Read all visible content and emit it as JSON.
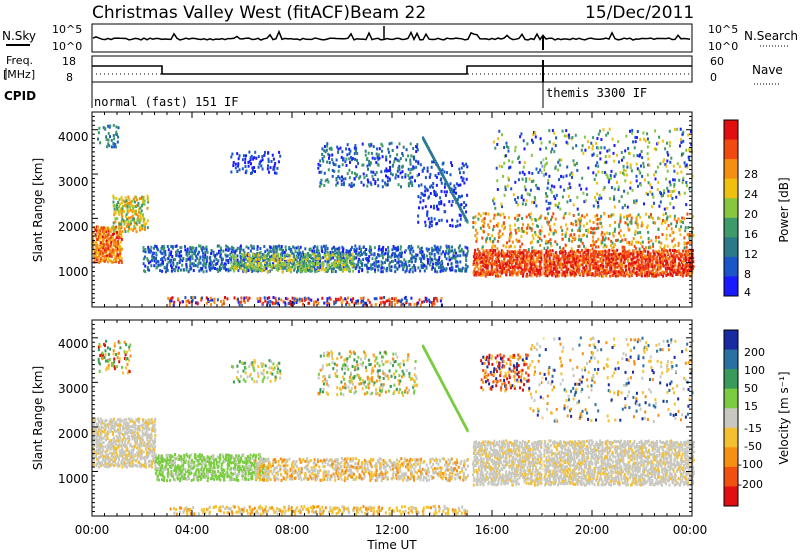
{
  "header": {
    "title": "Christmas Valley West (fitACF)",
    "beam": "Beam 22",
    "date": "15/Dec/2011"
  },
  "status_panels": {
    "nsky_label": "N.Sky",
    "nsearch_label": "N.Search",
    "freq_label_1": "Freq.",
    "freq_label_2": "[MHz]",
    "nave_label": "Nave",
    "cpid_label": "CPID",
    "nsky_ticks": [
      "10^5",
      "10^0"
    ],
    "nsearch_ticks": [
      "10^5",
      "10^0"
    ],
    "freq_ticks": [
      "18",
      "8"
    ],
    "nave_ticks": [
      "60",
      "0"
    ],
    "cpid_1": "normal (fast) 151 IF",
    "cpid_2": "themis 3300 IF",
    "freq_segments_mhz": [
      [
        0,
        2.8,
        14.5
      ],
      [
        2.8,
        15.0,
        10.5
      ],
      [
        15.0,
        24.0,
        14.5
      ]
    ]
  },
  "chart_data": [
    {
      "type": "heatmap",
      "name": "power",
      "ylabel": "Slant Range [km]",
      "y_ticks": [
        "1000",
        "2000",
        "3000",
        "4000"
      ],
      "ylim": [
        180,
        4550
      ],
      "xlim": [
        0,
        24
      ],
      "colorbar_label": "Power [dB]",
      "colorbar_ticks": [
        "4",
        "8",
        "12",
        "16",
        "20",
        "24",
        "28"
      ],
      "colors": [
        "#1a1aff",
        "#1a56c8",
        "#2a7a8a",
        "#3f9a6a",
        "#88c640",
        "#f0c010",
        "#f58f10",
        "#f04a10",
        "#e01010"
      ]
    },
    {
      "type": "heatmap",
      "name": "velocity",
      "ylabel": "Slant Range [km]",
      "y_ticks": [
        "1000",
        "2000",
        "3000",
        "4000"
      ],
      "ylim": [
        180,
        4550
      ],
      "xlim": [
        0,
        24
      ],
      "xlabel": "Time UT",
      "x_ticks": [
        "00:00",
        "04:00",
        "08:00",
        "12:00",
        "16:00",
        "20:00",
        "00:00"
      ],
      "colorbar_label": "Velocity [m s⁻¹]",
      "colorbar_ticks": [
        "200",
        "100",
        "50",
        "15",
        "-15",
        "-50",
        "-100",
        "-200"
      ],
      "colors": [
        "#1a2aa0",
        "#2a70a0",
        "#3a9a5a",
        "#7acc40",
        "#c8c8c0",
        "#f5c030",
        "#f59010",
        "#f05010",
        "#e01010"
      ]
    }
  ]
}
